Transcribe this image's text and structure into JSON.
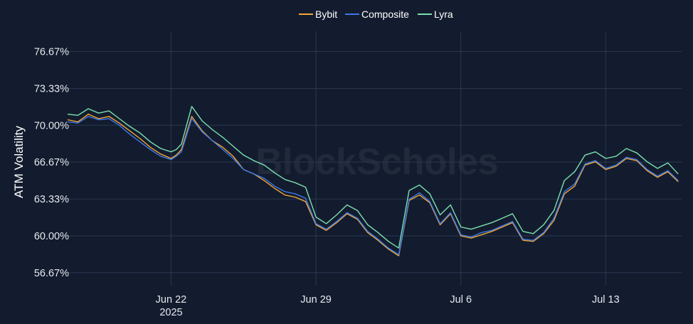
{
  "colors": {
    "background": "#131c2e",
    "grid": "#2b3750",
    "bybit": "#f2a83b",
    "composite": "#3d78e6",
    "lyra": "#7be0b0"
  },
  "watermark": "BlockScholes",
  "chart_data": {
    "type": "line",
    "ylabel": "ATM Volatility",
    "xlabel": "",
    "ylim": [
      55.5,
      78.5
    ],
    "y_ticks": [
      56.67,
      60.0,
      63.33,
      66.67,
      70.0,
      73.33,
      76.67
    ],
    "y_tick_labels": [
      "56.67%",
      "60.00%",
      "63.33%",
      "66.67%",
      "70.00%",
      "73.33%",
      "76.67%"
    ],
    "xlim": [
      "2025-06-17T00:00",
      "2025-07-16T16:00"
    ],
    "x_ticks": [
      "2025-06-22",
      "2025-06-29",
      "2025-07-06",
      "2025-07-13"
    ],
    "x_tick_labels": [
      "Jun 22",
      "Jun 29",
      "Jul 6",
      "Jul 13"
    ],
    "x_tick_sublabel": "2025",
    "grid": true,
    "legend_position": "top-center",
    "legend": [
      "Bybit",
      "Composite",
      "Lyra"
    ],
    "x": [
      "2025-06-17T00:00",
      "2025-06-17T12:00",
      "2025-06-18T00:00",
      "2025-06-18T12:00",
      "2025-06-19T00:00",
      "2025-06-19T12:00",
      "2025-06-20T00:00",
      "2025-06-20T12:00",
      "2025-06-21T00:00",
      "2025-06-21T12:00",
      "2025-06-22T00:00",
      "2025-06-22T06:00",
      "2025-06-22T12:00",
      "2025-06-23T00:00",
      "2025-06-23T12:00",
      "2025-06-24T00:00",
      "2025-06-24T12:00",
      "2025-06-25T00:00",
      "2025-06-25T12:00",
      "2025-06-26T00:00",
      "2025-06-26T12:00",
      "2025-06-27T00:00",
      "2025-06-27T12:00",
      "2025-06-28T00:00",
      "2025-06-28T12:00",
      "2025-06-29T00:00",
      "2025-06-29T12:00",
      "2025-06-30T00:00",
      "2025-06-30T12:00",
      "2025-07-01T00:00",
      "2025-07-01T12:00",
      "2025-07-02T00:00",
      "2025-07-02T12:00",
      "2025-07-03T00:00",
      "2025-07-03T12:00",
      "2025-07-04T00:00",
      "2025-07-04T12:00",
      "2025-07-05T00:00",
      "2025-07-05T12:00",
      "2025-07-06T00:00",
      "2025-07-06T12:00",
      "2025-07-07T00:00",
      "2025-07-07T12:00",
      "2025-07-08T00:00",
      "2025-07-08T12:00",
      "2025-07-09T00:00",
      "2025-07-09T12:00",
      "2025-07-10T00:00",
      "2025-07-10T12:00",
      "2025-07-11T00:00",
      "2025-07-11T12:00",
      "2025-07-12T00:00",
      "2025-07-12T12:00",
      "2025-07-13T00:00",
      "2025-07-13T12:00",
      "2025-07-14T00:00",
      "2025-07-14T12:00",
      "2025-07-15T00:00",
      "2025-07-15T12:00",
      "2025-07-16T00:00",
      "2025-07-16T12:00"
    ],
    "series": [
      {
        "name": "Bybit",
        "values": [
          70.5,
          70.3,
          71.0,
          70.6,
          70.8,
          70.2,
          69.5,
          68.8,
          68.0,
          67.4,
          67.0,
          67.3,
          67.8,
          70.8,
          69.5,
          68.6,
          68.0,
          67.2,
          66.0,
          65.6,
          65.0,
          64.3,
          63.7,
          63.5,
          63.1,
          61.0,
          60.5,
          61.2,
          62.0,
          61.5,
          60.3,
          59.6,
          58.8,
          58.2,
          63.2,
          63.7,
          63.0,
          61.0,
          62.0,
          60.0,
          59.8,
          60.1,
          60.4,
          60.8,
          61.2,
          59.6,
          59.5,
          60.2,
          61.4,
          63.8,
          64.5,
          66.4,
          66.7,
          66.0,
          66.3,
          67.0,
          66.8,
          65.9,
          65.3,
          65.8,
          64.9
        ]
      },
      {
        "name": "Composite",
        "values": [
          70.3,
          70.2,
          70.8,
          70.5,
          70.6,
          70.0,
          69.2,
          68.5,
          67.8,
          67.2,
          66.9,
          67.2,
          67.6,
          70.6,
          69.4,
          68.6,
          67.8,
          67.0,
          66.0,
          65.6,
          65.2,
          64.5,
          64.0,
          63.8,
          63.4,
          61.1,
          60.6,
          61.3,
          62.1,
          61.6,
          60.4,
          59.7,
          58.9,
          58.3,
          63.3,
          63.9,
          63.1,
          61.1,
          62.1,
          60.1,
          59.9,
          60.3,
          60.5,
          60.9,
          61.3,
          59.7,
          59.6,
          60.3,
          61.6,
          64.0,
          64.7,
          66.5,
          66.8,
          66.1,
          66.4,
          67.1,
          66.9,
          66.0,
          65.4,
          65.9,
          65.0
        ]
      },
      {
        "name": "Lyra",
        "values": [
          71.0,
          70.9,
          71.5,
          71.1,
          71.3,
          70.6,
          69.9,
          69.3,
          68.5,
          67.9,
          67.6,
          67.8,
          68.3,
          71.7,
          70.4,
          69.6,
          68.9,
          68.1,
          67.3,
          66.8,
          66.4,
          65.7,
          65.1,
          64.8,
          64.4,
          61.7,
          61.1,
          61.9,
          62.8,
          62.3,
          61.0,
          60.3,
          59.5,
          58.9,
          64.1,
          64.6,
          63.8,
          61.9,
          62.8,
          60.8,
          60.6,
          60.9,
          61.2,
          61.6,
          62.0,
          60.4,
          60.2,
          61.0,
          62.3,
          65.0,
          65.8,
          67.3,
          67.6,
          67.0,
          67.2,
          67.9,
          67.5,
          66.7,
          66.1,
          66.6,
          65.6
        ]
      }
    ]
  }
}
